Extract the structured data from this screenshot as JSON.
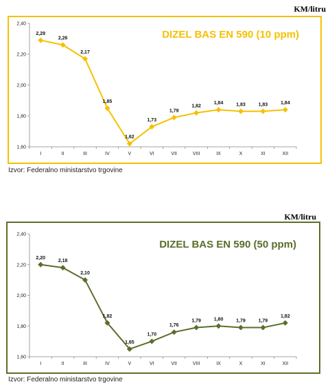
{
  "charts": [
    {
      "unit_label": "KM/litru",
      "source": "Izvor: Federalno ministarstvo trgovine",
      "accent": "#F5C000",
      "chart_data": {
        "type": "line",
        "title": "DIZEL BAS EN 590 (10 ppm)",
        "categories": [
          "I",
          "II",
          "III",
          "IV",
          "V",
          "VI",
          "VII",
          "VIII",
          "IX",
          "X",
          "XI",
          "XII"
        ],
        "values": [
          2.29,
          2.26,
          2.17,
          1.85,
          1.62,
          1.73,
          1.79,
          1.82,
          1.84,
          1.83,
          1.83,
          1.84
        ],
        "value_labels": [
          "2,29",
          "2,26",
          "2,17",
          "1,85",
          "1,62",
          "1,73",
          "1,79",
          "1,82",
          "1,84",
          "1,83",
          "1,83",
          "1,84"
        ],
        "yticks": [
          "1,60",
          "1,80",
          "2,00",
          "2,20",
          "2,40"
        ],
        "ylim": [
          1.6,
          2.4
        ],
        "grid": false,
        "legend": "none"
      }
    },
    {
      "unit_label": "KM/litru",
      "source": "Izvor: Federalno ministarstvo trgovine",
      "accent": "#5A6E2A",
      "chart_data": {
        "type": "line",
        "title": "DIZEL BAS EN 590 (50 ppm)",
        "categories": [
          "I",
          "II",
          "III",
          "IV",
          "V",
          "VI",
          "VII",
          "VIII",
          "IX",
          "X",
          "XI",
          "XII"
        ],
        "values": [
          2.2,
          2.18,
          2.1,
          1.82,
          1.65,
          1.7,
          1.76,
          1.79,
          1.8,
          1.79,
          1.79,
          1.82
        ],
        "value_labels": [
          "2,20",
          "2,18",
          "2,10",
          "1,82",
          "1,65",
          "1,70",
          "1,76",
          "1,79",
          "1,80",
          "1,79",
          "1,79",
          "1,82"
        ],
        "yticks": [
          "1,60",
          "1,80",
          "2,00",
          "2,20",
          "2,40"
        ],
        "ylim": [
          1.6,
          2.4
        ],
        "grid": false,
        "legend": "none"
      }
    }
  ]
}
